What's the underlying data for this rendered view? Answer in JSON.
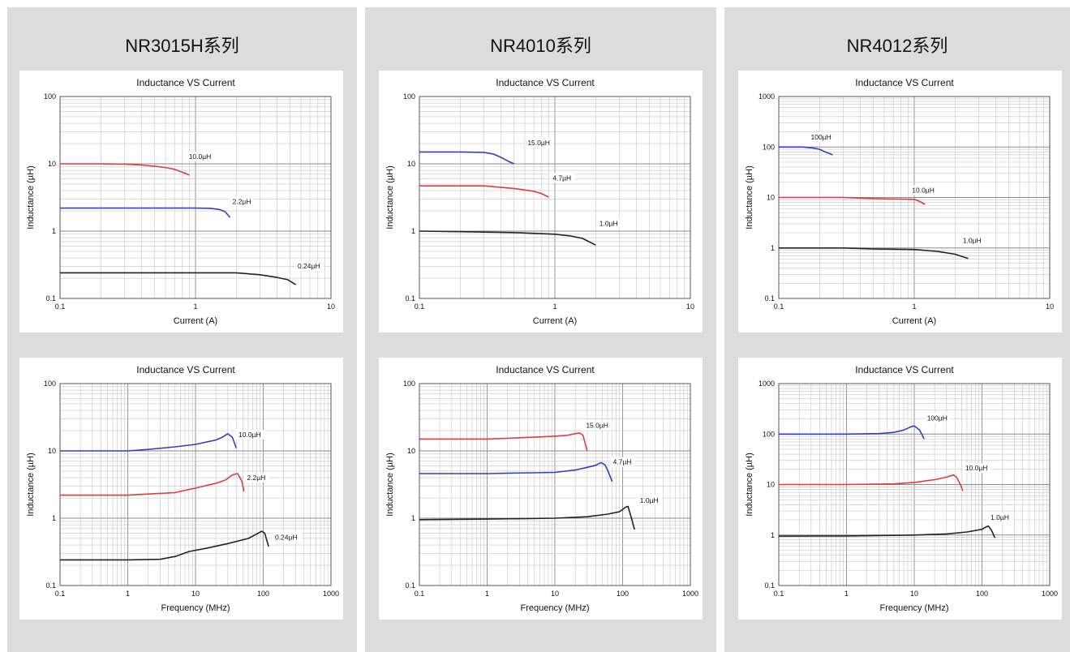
{
  "columns": [
    {
      "title": "NR3015H系列"
    },
    {
      "title": "NR4010系列"
    },
    {
      "title": "NR4012系列"
    }
  ],
  "colors": {
    "page_background": "#dcdcdc",
    "panel_background": "#ffffff",
    "black_curve": "#222222",
    "red_curve": "#e03a3a",
    "blue_curve": "#2f3fc0",
    "grid": "#9a9a9a"
  },
  "chart_data": [
    {
      "type": "line",
      "title": "Inductance VS Current",
      "xlabel": "Current (A)",
      "ylabel": "Inductance (µH)",
      "xscale": "log",
      "yscale": "log",
      "xlim": [
        0.1,
        10
      ],
      "ylim": [
        0.1,
        100
      ],
      "xticks": [
        "0.1",
        "1",
        "10"
      ],
      "yticks": [
        "0.1",
        "1",
        "10",
        "100"
      ],
      "grid": true,
      "series": [
        {
          "name": "10.0µH",
          "color": "#e03a3a",
          "x": [
            0.1,
            0.2,
            0.3,
            0.4,
            0.5,
            0.6,
            0.7,
            0.8,
            0.9
          ],
          "y": [
            10.0,
            10.0,
            9.9,
            9.6,
            9.2,
            8.8,
            8.3,
            7.5,
            6.8
          ]
        },
        {
          "name": "2.2µH",
          "color": "#2f3fc0",
          "x": [
            0.1,
            0.5,
            1.0,
            1.3,
            1.5,
            1.65,
            1.8
          ],
          "y": [
            2.2,
            2.2,
            2.2,
            2.18,
            2.1,
            1.95,
            1.6
          ]
        },
        {
          "name": "0.24µH",
          "color": "#222222",
          "x": [
            0.1,
            1.0,
            2.0,
            3.0,
            4.0,
            4.8,
            5.5
          ],
          "y": [
            0.24,
            0.24,
            0.24,
            0.225,
            0.205,
            0.19,
            0.16
          ]
        }
      ],
      "labels": [
        {
          "text": "10.0µH",
          "x": 0.88,
          "y": 11.8
        },
        {
          "text": "2.2µH",
          "x": 1.85,
          "y": 2.55
        },
        {
          "text": "0.24µH",
          "x": 5.6,
          "y": 0.28
        }
      ]
    },
    {
      "type": "line",
      "title": "Inductance VS Current",
      "xlabel": "Current (A)",
      "ylabel": "Inductance (µH)",
      "xscale": "log",
      "yscale": "log",
      "xlim": [
        0.1,
        10
      ],
      "ylim": [
        0.1,
        100
      ],
      "xticks": [
        "0.1",
        "1",
        "10"
      ],
      "yticks": [
        "0.1",
        "1",
        "10",
        "100"
      ],
      "grid": true,
      "series": [
        {
          "name": "15.0µH",
          "color": "#2f3fc0",
          "x": [
            0.1,
            0.2,
            0.3,
            0.35,
            0.4,
            0.45,
            0.5
          ],
          "y": [
            15.0,
            15.0,
            14.8,
            14.0,
            12.5,
            11.0,
            10.0
          ]
        },
        {
          "name": "4.7µH",
          "color": "#e03a3a",
          "x": [
            0.1,
            0.3,
            0.5,
            0.7,
            0.8,
            0.9
          ],
          "y": [
            4.7,
            4.7,
            4.3,
            3.9,
            3.6,
            3.2
          ]
        },
        {
          "name": "1.0µH",
          "color": "#222222",
          "x": [
            0.1,
            0.2,
            0.5,
            1.0,
            1.3,
            1.6,
            2.0
          ],
          "y": [
            1.0,
            0.98,
            0.95,
            0.9,
            0.85,
            0.78,
            0.62
          ]
        }
      ],
      "labels": [
        {
          "text": "15.0µH",
          "x": 0.62,
          "y": 19.0
        },
        {
          "text": "4.7µH",
          "x": 0.95,
          "y": 5.7
        },
        {
          "text": "1.0µH",
          "x": 2.1,
          "y": 1.2
        }
      ]
    },
    {
      "type": "line",
      "title": "Inductance VS Current",
      "xlabel": "Current (A)",
      "ylabel": "Inductance (µH)",
      "xscale": "log",
      "yscale": "log",
      "xlim": [
        0.1,
        10
      ],
      "ylim": [
        0.1,
        1000
      ],
      "xticks": [
        "0.1",
        "1",
        "10"
      ],
      "yticks": [
        "0.1",
        "1",
        "10",
        "100",
        "1000"
      ],
      "grid": true,
      "series": [
        {
          "name": "100µH",
          "color": "#2f3fc0",
          "x": [
            0.1,
            0.15,
            0.18,
            0.2,
            0.22,
            0.25
          ],
          "y": [
            100,
            100,
            95,
            90,
            80,
            70
          ]
        },
        {
          "name": "10.0µH",
          "color": "#e03a3a",
          "x": [
            0.1,
            0.3,
            0.5,
            0.8,
            1.0,
            1.1,
            1.2
          ],
          "y": [
            10,
            10,
            9.5,
            9.3,
            9.2,
            8.3,
            7.3
          ]
        },
        {
          "name": "1.0µH",
          "color": "#222222",
          "x": [
            0.1,
            0.3,
            0.5,
            1.0,
            1.5,
            2.0,
            2.5
          ],
          "y": [
            1.0,
            1.0,
            0.96,
            0.93,
            0.85,
            0.75,
            0.62
          ]
        }
      ],
      "labels": [
        {
          "text": "100µH",
          "x": 0.17,
          "y": 140
        },
        {
          "text": "10.0µH",
          "x": 0.95,
          "y": 12.5
        },
        {
          "text": "1.0µH",
          "x": 2.25,
          "y": 1.25
        }
      ]
    },
    {
      "type": "line",
      "title": "Inductance VS Current",
      "xlabel": "Frequency (MHz)",
      "ylabel": "Inductance (µH)",
      "xscale": "log",
      "yscale": "log",
      "xlim": [
        0.1,
        1000
      ],
      "ylim": [
        0.1,
        100
      ],
      "xticks": [
        "0.1",
        "1",
        "10",
        "100",
        "1000"
      ],
      "yticks": [
        "0.1",
        "1",
        "10",
        "100"
      ],
      "grid": true,
      "series": [
        {
          "name": "10.0µH",
          "color": "#2f3fc0",
          "x": [
            0.1,
            1,
            2,
            5,
            10,
            20,
            25,
            30,
            35,
            40
          ],
          "y": [
            10,
            10,
            10.5,
            11.5,
            12.5,
            14.5,
            16,
            18,
            16,
            11
          ]
        },
        {
          "name": "2.2µH",
          "color": "#e03a3a",
          "x": [
            0.1,
            1,
            5,
            10,
            20,
            28,
            35,
            42,
            48,
            52
          ],
          "y": [
            2.2,
            2.2,
            2.4,
            2.8,
            3.3,
            3.7,
            4.4,
            4.6,
            3.6,
            2.5
          ]
        },
        {
          "name": "0.24µH",
          "color": "#222222",
          "x": [
            0.1,
            1,
            3,
            5,
            8,
            15,
            30,
            60,
            80,
            95,
            105,
            120
          ],
          "y": [
            0.24,
            0.24,
            0.245,
            0.27,
            0.32,
            0.36,
            0.42,
            0.5,
            0.58,
            0.64,
            0.6,
            0.38
          ]
        }
      ],
      "labels": [
        {
          "text": "10.0µH",
          "x": 42,
          "y": 16.0
        },
        {
          "text": "2.2µH",
          "x": 56,
          "y": 3.7
        },
        {
          "text": "0.24µH",
          "x": 145,
          "y": 0.48
        }
      ]
    },
    {
      "type": "line",
      "title": "Inductance VS Current",
      "xlabel": "Frequency (MHz)",
      "ylabel": "Inductance (µH)",
      "xscale": "log",
      "yscale": "log",
      "xlim": [
        0.1,
        1000
      ],
      "ylim": [
        0.1,
        100
      ],
      "xticks": [
        "0.1",
        "1",
        "10",
        "100",
        "1000"
      ],
      "yticks": [
        "0.1",
        "1",
        "10",
        "100"
      ],
      "grid": true,
      "series": [
        {
          "name": "15.0µH",
          "color": "#e03a3a",
          "x": [
            0.1,
            1,
            5,
            10,
            15,
            20,
            23,
            26,
            28,
            30
          ],
          "y": [
            15,
            15,
            16,
            16.5,
            17,
            18,
            18.5,
            17,
            13,
            10
          ]
        },
        {
          "name": "4.7µH",
          "color": "#2f3fc0",
          "x": [
            0.1,
            1,
            10,
            20,
            30,
            40,
            48,
            55,
            62,
            70
          ],
          "y": [
            4.6,
            4.6,
            4.8,
            5.2,
            5.7,
            6.1,
            6.7,
            6.2,
            4.8,
            3.5
          ]
        },
        {
          "name": "1.0µH",
          "color": "#222222",
          "x": [
            0.1,
            1,
            10,
            30,
            60,
            90,
            110,
            120,
            135,
            150
          ],
          "y": [
            0.95,
            0.97,
            1.0,
            1.05,
            1.15,
            1.25,
            1.45,
            1.5,
            1.0,
            0.68
          ]
        }
      ],
      "labels": [
        {
          "text": "15.0µH",
          "x": 28,
          "y": 22.0
        },
        {
          "text": "4.7µH",
          "x": 70,
          "y": 6.3
        },
        {
          "text": "1.0µH",
          "x": 175,
          "y": 1.7
        }
      ]
    },
    {
      "type": "line",
      "title": "Inductance VS Current",
      "xlabel": "Frequency (MHz)",
      "ylabel": "Inductance (µH)",
      "xscale": "log",
      "yscale": "log",
      "xlim": [
        0.1,
        1000
      ],
      "ylim": [
        0.1,
        1000
      ],
      "xticks": [
        "0.1",
        "1",
        "10",
        "100",
        "1000"
      ],
      "yticks": [
        "0.1",
        "1",
        "10",
        "100",
        "1000"
      ],
      "grid": true,
      "series": [
        {
          "name": "100µH",
          "color": "#2f3fc0",
          "x": [
            0.1,
            1,
            3,
            5,
            7,
            9,
            10,
            12,
            14
          ],
          "y": [
            100,
            100,
            102,
            108,
            120,
            140,
            145,
            120,
            80
          ]
        },
        {
          "name": "10.0µH",
          "color": "#e03a3a",
          "x": [
            0.1,
            1,
            5,
            10,
            20,
            30,
            38,
            42,
            48,
            52
          ],
          "y": [
            10,
            10,
            10.3,
            11,
            12.5,
            14,
            15.5,
            14,
            10,
            7.5
          ]
        },
        {
          "name": "1.0µH",
          "color": "#222222",
          "x": [
            0.1,
            1,
            10,
            30,
            60,
            100,
            115,
            125,
            140,
            155
          ],
          "y": [
            0.95,
            0.96,
            1.0,
            1.05,
            1.15,
            1.3,
            1.45,
            1.5,
            1.2,
            0.88
          ]
        }
      ],
      "labels": [
        {
          "text": "100µH",
          "x": 15,
          "y": 185
        },
        {
          "text": "10.0µH",
          "x": 55,
          "y": 19.0
        },
        {
          "text": "1.0µH",
          "x": 130,
          "y": 2.0
        }
      ]
    }
  ]
}
